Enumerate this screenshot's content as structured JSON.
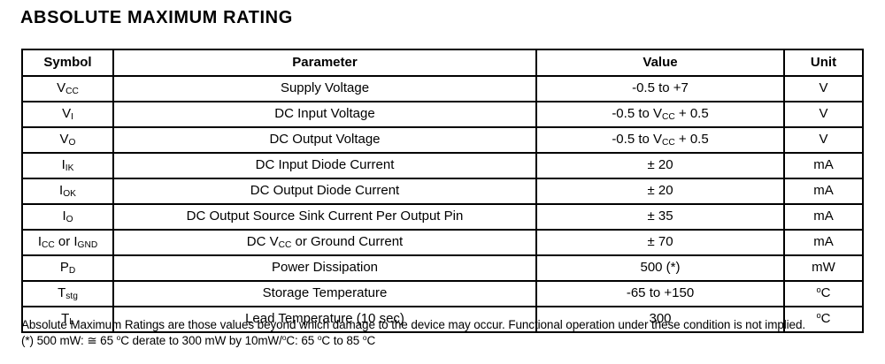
{
  "page": {
    "title": "ABSOLUTE MAXIMUM RATING"
  },
  "table": {
    "columns": [
      "Symbol",
      "Parameter",
      "Value",
      "Unit"
    ],
    "rows": [
      {
        "symbol": "V~CC~",
        "parameter": "Supply Voltage",
        "value": "-0.5 to +7",
        "unit": "V"
      },
      {
        "symbol": "V~I~",
        "parameter": "DC Input Voltage",
        "value": "-0.5 to V~CC~ + 0.5",
        "unit": "V"
      },
      {
        "symbol": "V~O~",
        "parameter": "DC Output Voltage",
        "value": "-0.5 to V~CC~ + 0.5",
        "unit": "V"
      },
      {
        "symbol": "I~IK~",
        "parameter": "DC Input Diode Current",
        "value": "± 20",
        "unit": "mA"
      },
      {
        "symbol": "I~OK~",
        "parameter": "DC Output Diode Current",
        "value": "± 20",
        "unit": "mA"
      },
      {
        "symbol": "I~O~",
        "parameter": "DC Output Source Sink Current Per Output Pin",
        "value": "± 35",
        "unit": "mA"
      },
      {
        "symbol": "I~CC~ or I~GND~",
        "parameter": "DC V~CC~ or Ground Current",
        "value": "± 70",
        "unit": "mA"
      },
      {
        "symbol": "P~D~",
        "parameter": "Power Dissipation",
        "value": "500 (*)",
        "unit": "mW"
      },
      {
        "symbol": "T~stg~",
        "parameter": "Storage Temperature",
        "value": "-65 to +150",
        "unit": "^o^C"
      },
      {
        "symbol": "T~L~",
        "parameter": "Lead Temperature (10 sec)",
        "value": "300",
        "unit": "^o^C"
      }
    ]
  },
  "footnotes": [
    "Absolute Maximum Ratings are those values beyond which damage to the device may occur. Functional operation under these condition is not implied.",
    "(*) 500 mW: ≅ 65 ^o^C derate to 300 mW by 10mW/^o^C: 65 ^o^C to 85 ^o^C"
  ],
  "colors": {
    "text": "#000000",
    "background": "#ffffff",
    "border": "#000000"
  }
}
